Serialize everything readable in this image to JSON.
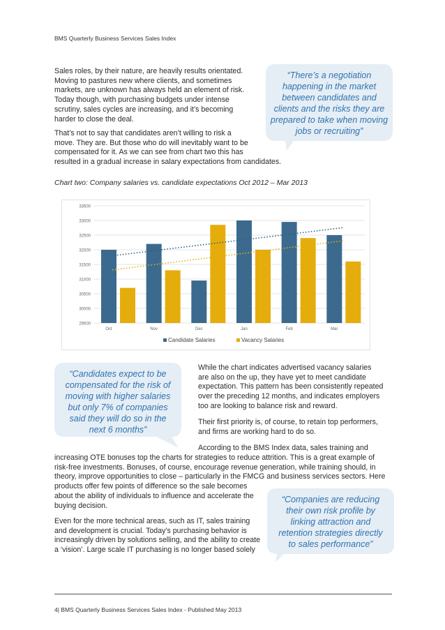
{
  "header": {
    "title": "BMS Quarterly Business Services Sales Index"
  },
  "intro": {
    "p1": [
      "Sales roles, by their nature, are heavily results orientated.",
      "Moving to pastures new where clients, and sometimes",
      "markets, are unknown has always held an element of risk.",
      "Today though, with purchasing budgets under intense",
      "scrutiny, sales cycles are increasing, and it’s becoming",
      "harder to close the deal."
    ],
    "p2": [
      "That’s not to say that candidates aren’t willing to risk a",
      "move. They are. But those who do will inevitably want to be",
      "compensated for it. As we can see from chart two this has",
      "resulted in a gradual increase in salary expectations from candidates."
    ]
  },
  "quote1": [
    "“There’s a negotiation",
    "happening in the market",
    "between candidates and",
    "clients and the risks they are",
    "prepared to take when moving",
    "jobs or recruiting”"
  ],
  "chart_title": "Chart two: Company salaries vs. candidate expectations Oct 2012 – Mar 2013",
  "chart_data": {
    "type": "bar",
    "categories": [
      "Oct",
      "Nov",
      "Dec",
      "Jan",
      "Feb",
      "Mar"
    ],
    "series": [
      {
        "name": "Candidate Salaries",
        "values": [
          32000,
          32200,
          30950,
          33000,
          32950,
          32500
        ]
      },
      {
        "name": "Vacancy Salaries",
        "values": [
          30700,
          31300,
          32850,
          32000,
          32400,
          31600
        ]
      }
    ],
    "trendlines": true,
    "ylim": [
      29500,
      33500
    ],
    "yticks": [
      29500,
      30000,
      30500,
      31000,
      31500,
      32000,
      32500,
      33000,
      33500
    ],
    "ytick_labels": [
      "29500",
      "30000",
      "30500",
      "31000",
      "31500",
      "32000",
      "32500",
      "33000",
      "33500"
    ],
    "grid": true,
    "legend": "bottom",
    "colors": {
      "candidate": "#3b6a8e",
      "vacancy": "#e5ad0c"
    }
  },
  "quote2": [
    "“Candidates expect to be",
    "compensated for the risk of",
    "moving with higher salaries",
    "but only 7% of companies",
    "said they will do so in the",
    "next 6 months”"
  ],
  "right": {
    "p1": [
      "While the chart indicates advertised vacancy salaries",
      "are also on the up, they have yet to meet candidate",
      "expectation. This pattern has been consistently repeated",
      "over the preceding 12 months, and indicates employers",
      "too are looking to balance risk and reward."
    ],
    "p2": [
      "Their first priority is, of course, to retain top performers,",
      "and firms are working hard to do so."
    ],
    "p3_first": "According to the BMS Index data, sales training and"
  },
  "full_lines": [
    "increasing OTE bonuses top the charts for strategies to reduce attrition. This is a great example of",
    "risk-free investments. Bonuses, of course, encourage revenue generation, while training should, in",
    "theory, improve opportunities to close – particularly in the FMCG and business services sectors. Here",
    "products offer few points of difference so the sale becomes"
  ],
  "left_lines": [
    "about the ability of individuals to influence and accelerate the",
    "buying decision."
  ],
  "left_p2": [
    "Even for the more technical areas, such as IT, sales training",
    "and development is crucial. Today’s purchasing behavior is",
    "increasingly driven by solutions selling, and the ability to create",
    "a ‘vision’. Large scale IT purchasing is no longer based solely"
  ],
  "quote3": [
    "“Companies are reducing",
    "their own risk profile by",
    "linking attraction and",
    "retention strategies directly",
    "to sales performance”"
  ],
  "footer": {
    "text": "4| BMS Quarterly Business Services Sales Index - Published May 2013"
  }
}
